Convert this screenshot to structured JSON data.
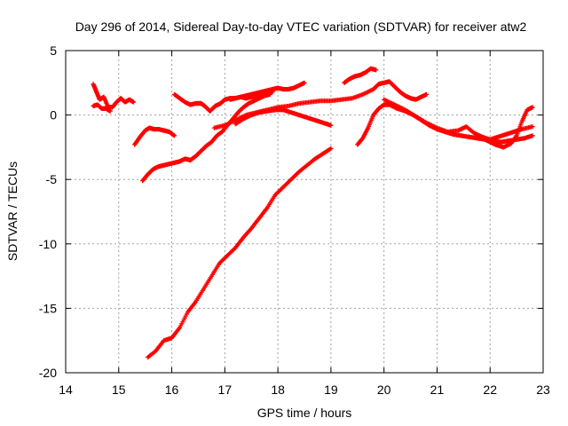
{
  "chart_data": {
    "type": "scatter",
    "title": "Day 296 of 2014, Sidereal Day-to-day VTEC variation (SDTVAR) for receiver atw2",
    "xlabel": "GPS time / hours",
    "ylabel": "SDTVAR / TECUs",
    "xlim": [
      14,
      23
    ],
    "ylim": [
      -20,
      5
    ],
    "xticks": [
      14,
      15,
      16,
      17,
      18,
      19,
      20,
      21,
      22,
      23
    ],
    "yticks": [
      -20,
      -15,
      -10,
      -5,
      0,
      5
    ],
    "grid": true,
    "marker": "+",
    "color": "#ff0000",
    "series": [
      {
        "name": "s1",
        "x": [
          14.52,
          14.58,
          14.64,
          14.72,
          14.8,
          14.88,
          14.96,
          15.04,
          15.12,
          15.2,
          15.28
        ],
        "y": [
          2.4,
          1.8,
          1.2,
          1.4,
          0.6,
          0.6,
          1.0,
          1.3,
          1.0,
          1.2,
          1.0
        ]
      },
      {
        "name": "s1b",
        "x": [
          14.52,
          14.6,
          14.68,
          14.76,
          14.84
        ],
        "y": [
          0.7,
          0.8,
          0.5,
          0.5,
          0.3
        ]
      },
      {
        "name": "s2",
        "x": [
          15.3,
          15.4,
          15.5,
          15.58,
          15.66,
          15.75,
          15.85,
          15.95,
          16.05
        ],
        "y": [
          -2.3,
          -1.7,
          -1.2,
          -1.0,
          -1.1,
          -1.1,
          -1.2,
          -1.3,
          -1.6
        ]
      },
      {
        "name": "s3",
        "x": [
          16.05,
          16.15,
          16.25,
          16.35,
          16.45,
          16.55,
          16.62,
          16.72,
          16.82,
          16.92,
          17.0,
          17.1,
          17.2,
          17.3,
          17.4,
          17.5,
          17.6,
          17.7,
          17.8,
          17.9
        ],
        "y": [
          1.6,
          1.3,
          1.0,
          0.8,
          0.9,
          0.9,
          0.7,
          0.3,
          0.7,
          0.9,
          1.2,
          1.3,
          1.3,
          1.4,
          1.3,
          1.4,
          1.5,
          1.6,
          1.7,
          1.8
        ]
      },
      {
        "name": "s4",
        "x": [
          17.1,
          17.2,
          17.3,
          17.4,
          17.5,
          17.6,
          17.7,
          17.8,
          17.9,
          18.0,
          18.1,
          18.2,
          18.3,
          18.4,
          18.5
        ],
        "y": [
          1.2,
          1.3,
          1.4,
          1.5,
          1.6,
          1.7,
          1.8,
          1.9,
          2.0,
          2.1,
          2.0,
          2.0,
          2.1,
          2.3,
          2.5
        ]
      },
      {
        "name": "s5",
        "x": [
          15.45,
          15.55,
          15.65,
          15.75,
          15.85,
          15.95,
          16.05,
          16.15,
          16.25,
          16.35,
          16.45,
          16.55,
          16.65,
          16.75,
          16.85,
          16.95,
          17.05,
          17.15,
          17.25,
          17.35,
          17.45,
          17.55,
          17.65,
          17.75,
          17.85
        ],
        "y": [
          -5.1,
          -4.6,
          -4.2,
          -4.0,
          -3.9,
          -3.8,
          -3.7,
          -3.6,
          -3.4,
          -3.5,
          -3.2,
          -2.8,
          -2.4,
          -2.1,
          -1.6,
          -1.3,
          -0.8,
          -0.3,
          0.2,
          0.6,
          0.9,
          1.1,
          1.3,
          1.5,
          1.6
        ]
      },
      {
        "name": "s6",
        "x": [
          16.8,
          17.0,
          17.2,
          17.4,
          17.6,
          17.8,
          18.0,
          18.2,
          18.4,
          18.6,
          18.8,
          19.0,
          19.2,
          19.4,
          19.6,
          19.8,
          19.9,
          20.0,
          20.1,
          20.2,
          20.3,
          20.4,
          20.5,
          20.6,
          20.7,
          20.8
        ],
        "y": [
          -1.0,
          -0.8,
          -0.4,
          0.0,
          0.2,
          0.4,
          0.6,
          0.7,
          0.9,
          1.0,
          1.1,
          1.1,
          1.2,
          1.3,
          1.6,
          2.0,
          2.4,
          2.5,
          2.6,
          2.2,
          1.8,
          1.5,
          1.3,
          1.2,
          1.4,
          1.6
        ]
      },
      {
        "name": "s7",
        "x": [
          17.2,
          17.35,
          17.5,
          17.65,
          17.8,
          17.95,
          18.1,
          18.25,
          18.4,
          18.55,
          18.7,
          18.85,
          19.0
        ],
        "y": [
          -0.7,
          -0.3,
          0.0,
          0.2,
          0.3,
          0.4,
          0.4,
          0.2,
          0.0,
          -0.2,
          -0.4,
          -0.6,
          -0.8
        ]
      },
      {
        "name": "s8",
        "x": [
          19.25,
          19.35,
          19.45,
          19.55,
          19.65,
          19.75,
          19.85
        ],
        "y": [
          2.5,
          2.8,
          3.0,
          3.1,
          3.3,
          3.6,
          3.5
        ]
      },
      {
        "name": "s9",
        "x": [
          15.55,
          15.7,
          15.85,
          16.0,
          16.15,
          16.3,
          16.45,
          16.6,
          16.75,
          16.9,
          17.05,
          17.2,
          17.35,
          17.5,
          17.65,
          17.8,
          17.95,
          18.1,
          18.25,
          18.4,
          18.55,
          18.7,
          18.85,
          19.0
        ],
        "y": [
          -18.8,
          -18.3,
          -17.5,
          -17.3,
          -16.5,
          -15.3,
          -14.5,
          -13.5,
          -12.5,
          -11.5,
          -10.9,
          -10.3,
          -9.5,
          -8.8,
          -8.0,
          -7.2,
          -6.2,
          -5.6,
          -5.0,
          -4.4,
          -3.9,
          -3.4,
          -3.0,
          -2.6
        ]
      },
      {
        "name": "s10",
        "x": [
          19.5,
          19.6,
          19.7,
          19.8,
          19.9,
          20.0,
          20.1,
          20.25,
          20.4,
          20.55,
          20.7,
          20.85,
          21.0,
          21.15,
          21.3,
          21.45,
          21.6,
          21.75,
          21.9,
          22.05,
          22.2,
          22.35,
          22.5,
          22.65,
          22.8
        ],
        "y": [
          -2.3,
          -1.8,
          -1.0,
          0.0,
          0.5,
          0.8,
          0.8,
          0.5,
          0.3,
          0.0,
          -0.4,
          -0.8,
          -1.1,
          -1.3,
          -1.5,
          -1.6,
          -1.7,
          -1.8,
          -1.9,
          -2.0,
          -2.1,
          -2.0,
          -1.9,
          -1.8,
          -1.6
        ]
      },
      {
        "name": "s11",
        "x": [
          20.0,
          20.2,
          20.4,
          20.6,
          20.8,
          21.0,
          21.2,
          21.4,
          21.55,
          21.7,
          21.85,
          22.0,
          22.15,
          22.3,
          22.45,
          22.6,
          22.8
        ],
        "y": [
          1.2,
          0.8,
          0.4,
          -0.1,
          -0.6,
          -1.0,
          -1.3,
          -1.2,
          -0.9,
          -1.4,
          -1.7,
          -1.9,
          -1.7,
          -1.5,
          -1.3,
          -1.1,
          -0.9
        ]
      },
      {
        "name": "s12",
        "x": [
          21.8,
          21.95,
          22.1,
          22.25,
          22.4,
          22.5,
          22.6,
          22.7,
          22.8
        ],
        "y": [
          -1.7,
          -2.0,
          -2.3,
          -2.5,
          -2.2,
          -1.6,
          -0.5,
          0.4,
          0.6
        ]
      }
    ]
  }
}
